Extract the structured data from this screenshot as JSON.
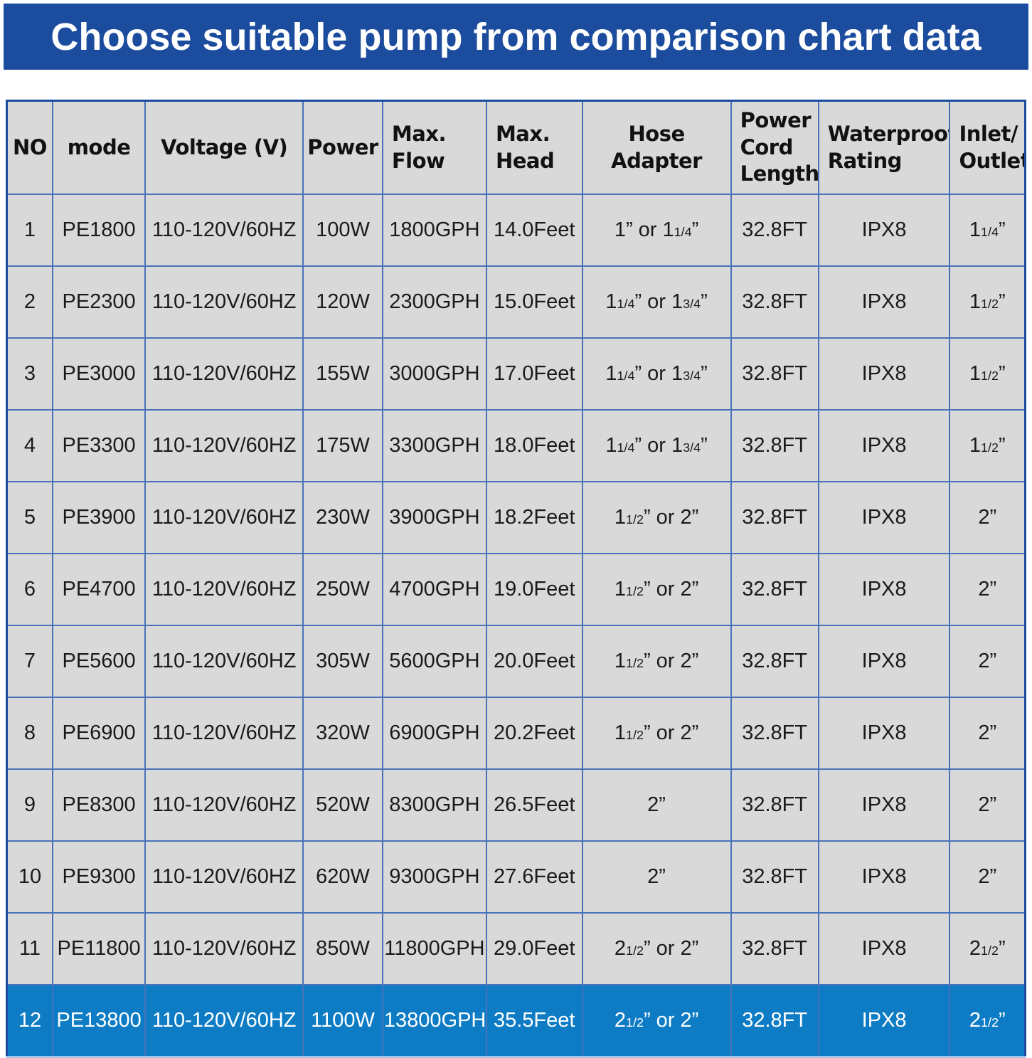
{
  "title": "Choose suitable pump from comparison chart data",
  "colors": {
    "title_bar_bg": "#1b4c9e",
    "title_text": "#ffffff",
    "table_bg": "#d9d9d9",
    "grid_line": "#4a72ba",
    "outer_border": "#1d4c9c",
    "highlight_row_bg": "#0e7cc4",
    "highlight_row_text": "#ffffff"
  },
  "chart_data": {
    "type": "table",
    "title": "Choose suitable pump from comparison chart data",
    "columns": [
      "NO",
      "mode",
      "Voltage (V)",
      "Power",
      "Max.\nFlow",
      "Max.\nHead",
      "Hose Adapter",
      "Power\nCord\nLength",
      "Waterproof\nRating",
      "Inlet/\nOutlet"
    ],
    "rows": [
      [
        "1",
        "PE1800",
        "110-120V/60HZ",
        "100W",
        "1800GPH",
        "14.0Feet",
        "1” or 1{1/4}”",
        "32.8FT",
        "IPX8",
        "1{1/4}”"
      ],
      [
        "2",
        "PE2300",
        "110-120V/60HZ",
        "120W",
        "2300GPH",
        "15.0Feet",
        "1{1/4}” or 1{3/4}”",
        "32.8FT",
        "IPX8",
        "1{1/2}”"
      ],
      [
        "3",
        "PE3000",
        "110-120V/60HZ",
        "155W",
        "3000GPH",
        "17.0Feet",
        "1{1/4}” or 1{3/4}”",
        "32.8FT",
        "IPX8",
        "1{1/2}”"
      ],
      [
        "4",
        "PE3300",
        "110-120V/60HZ",
        "175W",
        "3300GPH",
        "18.0Feet",
        "1{1/4}” or 1{3/4}”",
        "32.8FT",
        "IPX8",
        "1{1/2}”"
      ],
      [
        "5",
        "PE3900",
        "110-120V/60HZ",
        "230W",
        "3900GPH",
        "18.2Feet",
        "1{1/2}” or 2”",
        "32.8FT",
        "IPX8",
        "2”"
      ],
      [
        "6",
        "PE4700",
        "110-120V/60HZ",
        "250W",
        "4700GPH",
        "19.0Feet",
        "1{1/2}” or 2”",
        "32.8FT",
        "IPX8",
        "2”"
      ],
      [
        "7",
        "PE5600",
        "110-120V/60HZ",
        "305W",
        "5600GPH",
        "20.0Feet",
        "1{1/2}” or 2”",
        "32.8FT",
        "IPX8",
        "2”"
      ],
      [
        "8",
        "PE6900",
        "110-120V/60HZ",
        "320W",
        "6900GPH",
        "20.2Feet",
        "1{1/2}” or 2”",
        "32.8FT",
        "IPX8",
        "2”"
      ],
      [
        "9",
        "PE8300",
        "110-120V/60HZ",
        "520W",
        "8300GPH",
        "26.5Feet",
        "2”",
        "32.8FT",
        "IPX8",
        "2”"
      ],
      [
        "10",
        "PE9300",
        "110-120V/60HZ",
        "620W",
        "9300GPH",
        "27.6Feet",
        "2”",
        "32.8FT",
        "IPX8",
        "2”"
      ],
      [
        "11",
        "PE11800",
        "110-120V/60HZ",
        "850W",
        "11800GPH",
        "29.0Feet",
        "2{1/2}” or 2”",
        "32.8FT",
        "IPX8",
        "2{1/2}”"
      ],
      [
        "12",
        "PE13800",
        "110-120V/60HZ",
        "1100W",
        "13800GPH",
        "35.5Feet",
        "2{1/2}” or 2”",
        "32.8FT",
        "IPX8",
        "2{1/2}”"
      ]
    ],
    "highlight_row": 12,
    "layout_hints": {
      "header_bg": "#d9d9d9",
      "grid": true
    }
  }
}
